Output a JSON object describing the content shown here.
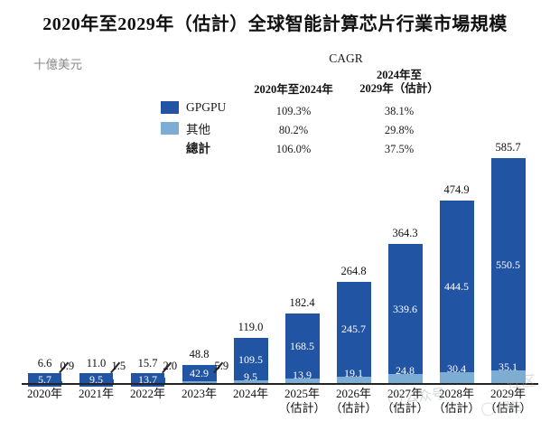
{
  "title": "2020年至2029年（估計）全球智能計算芯片行業市場規模",
  "unit_label": "十億美元",
  "cagr": {
    "heading": "CAGR",
    "col1_header": "2020年至2024年",
    "col2_header_line1": "2024年至",
    "col2_header_line2": "2029年（估計）",
    "rows": [
      {
        "series": "GPGPU",
        "period1": "109.3%",
        "period2": "38.1%"
      },
      {
        "series": "其他",
        "period1": "80.2%",
        "period2": "29.8%"
      },
      {
        "series": "總計",
        "period1": "106.0%",
        "period2": "37.5%"
      }
    ]
  },
  "legend": {
    "items": [
      {
        "label": "GPGPU",
        "color": "#2254A4"
      },
      {
        "label": "其他",
        "color": "#7EADD3"
      },
      {
        "label": "總計",
        "color": ""
      }
    ]
  },
  "chart_data": {
    "type": "bar",
    "stacked": true,
    "title": "2020年至2029年（估計）全球智能計算芯片行業市場規模",
    "ylabel": "十億美元",
    "ylim": [
      0,
      600
    ],
    "grid": false,
    "legend_position": "upper-center-left",
    "categories": [
      "2020年",
      "2021年",
      "2022年",
      "2023年",
      "2024年",
      "2025年",
      "2026年",
      "2027年",
      "2028年",
      "2029年"
    ],
    "estimate_from_index": 5,
    "estimate_suffix": "（估計）",
    "series": [
      {
        "name": "GPGPU",
        "color": "#2254A4",
        "values": [
          5.7,
          9.5,
          13.7,
          42.9,
          109.5,
          168.5,
          245.7,
          339.6,
          444.5,
          550.5
        ],
        "labels": [
          "5.7",
          "9.5",
          "13.7",
          "42.9",
          "109.5",
          "168.5",
          "245.7",
          "339.6",
          "444.5",
          "550.5"
        ]
      },
      {
        "name": "其他",
        "color": "#7EADD3",
        "values": [
          0.9,
          1.5,
          2.0,
          5.9,
          9.5,
          13.9,
          19.1,
          24.8,
          30.4,
          35.1
        ],
        "labels": [
          "0.9",
          "1.5",
          "2.0",
          "5.9",
          "9.5",
          "13.9",
          "19.1",
          "24.8",
          "30.4",
          "35.1"
        ]
      }
    ],
    "totals": [
      6.6,
      11.0,
      15.7,
      48.8,
      119.0,
      182.4,
      264.8,
      364.3,
      474.9,
      585.7
    ],
    "total_labels": [
      "6.6",
      "11.0",
      "15.7",
      "48.8",
      "119.0",
      "182.4",
      "264.8",
      "364.3",
      "474.9",
      "585.7"
    ]
  },
  "watermark": {
    "center_text": "公众号",
    "right_top_text": "社区",
    "right_bottom_text": "报告"
  }
}
